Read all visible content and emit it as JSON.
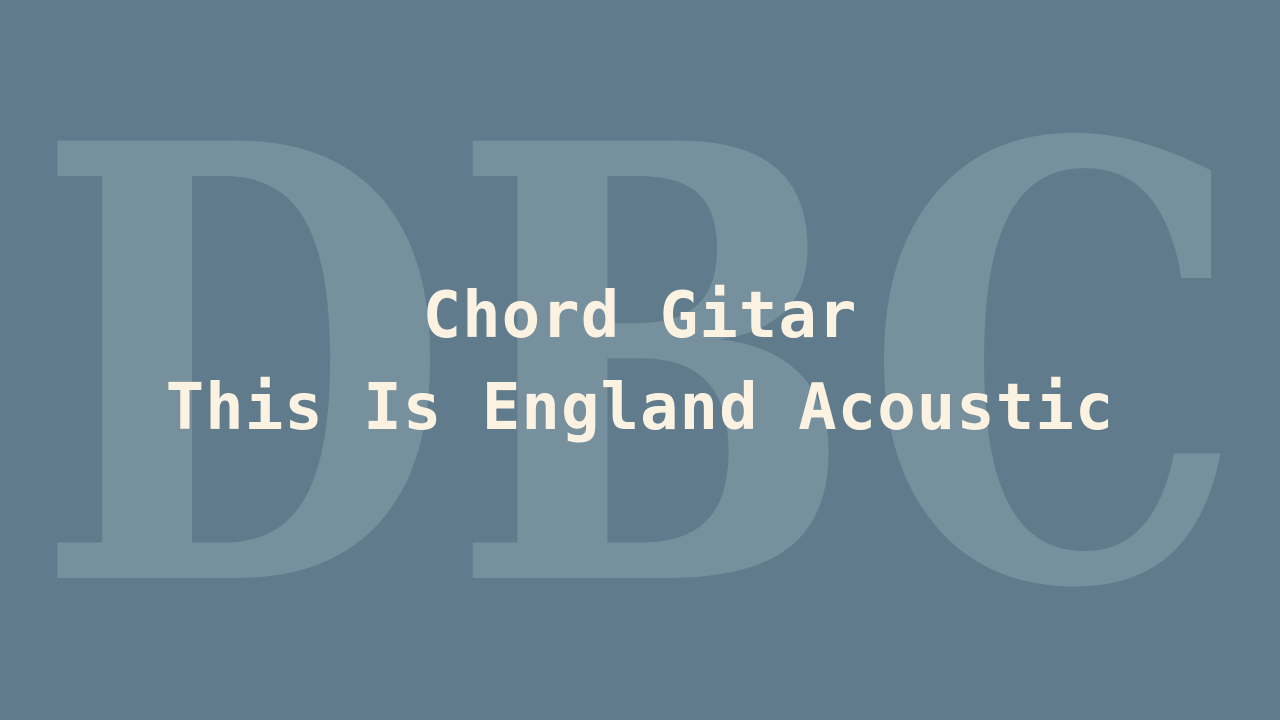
{
  "watermark": {
    "text": "DBC"
  },
  "title": {
    "line1": "Chord Gitar",
    "line2": "This Is England Acoustic"
  },
  "colors": {
    "background": "#5f7b8c",
    "watermark": "#7c94a2",
    "title": "#fbf2e2"
  }
}
